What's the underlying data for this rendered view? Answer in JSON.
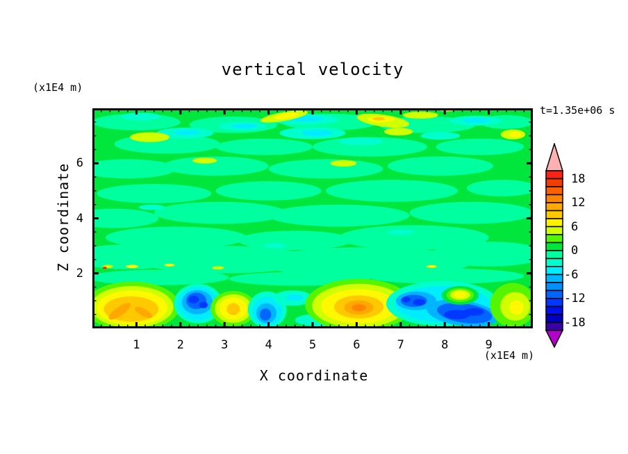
{
  "title": "vertical velocity",
  "timestamp": "t=1.35e+06 s",
  "y_axis": {
    "label": "Z coordinate",
    "units": "(x1E4 m)",
    "tick_values": [
      2,
      4,
      6
    ]
  },
  "x_axis": {
    "label": "X coordinate",
    "units": "(x1E4 m)",
    "tick_values": [
      1,
      2,
      3,
      4,
      5,
      6,
      7,
      8,
      9
    ]
  },
  "colorbar": {
    "tick_values": [
      18,
      12,
      6,
      0,
      -6,
      -12,
      -18
    ],
    "levels_min": -20,
    "levels_max": 20,
    "levels_step": 2,
    "segment_colors_top_to_bottom": [
      "#FB2318",
      "#F23E00",
      "#FF6000",
      "#FF8500",
      "#FFA800",
      "#FFC900",
      "#FFF100",
      "#CFFF00",
      "#55F400",
      "#00E63C",
      "#00FF9E",
      "#00FFCC",
      "#00ECFF",
      "#00B4FF",
      "#0090FF",
      "#0066FF",
      "#0038FF",
      "#0010E8",
      "#0000BE",
      "#3800A8"
    ],
    "over_color": "#FFB0B0",
    "under_color": "#B400C8"
  },
  "chart_data": {
    "type": "heatmap",
    "subtype": "filled-contour",
    "title": "vertical velocity",
    "xlabel": "X coordinate (x1E4 m)",
    "ylabel": "Z coordinate (x1E4 m)",
    "time_annotation": "t=1.35e+06 s",
    "x_range": [
      0,
      10
    ],
    "z_range": [
      0,
      8
    ],
    "x_major_ticks": [
      1,
      2,
      3,
      4,
      5,
      6,
      7,
      8,
      9
    ],
    "x_minor_step": 0.2,
    "z_major_ticks": [
      2,
      4,
      6
    ],
    "z_minor_step": 0.5,
    "contour_levels": {
      "min": -20,
      "max": 20,
      "step": 2
    },
    "legend_position": "right-colorbar",
    "grid": false,
    "palette": {
      "green": "#00E63C",
      "spring": "#00FF9E",
      "turq": "#00FFCC",
      "cyan": "#00ECFF",
      "sky": "#00B4FF",
      "dodger": "#0066FF",
      "blue": "#0038FF",
      "lime": "#55F400",
      "chart": "#CFFF00",
      "yellow": "#FFF800",
      "gold": "#FFC900",
      "orange": "#FFA800",
      "dorange": "#FF8500",
      "red": "#FB2318"
    },
    "base_color": "green",
    "features_note": "ellipse patches [colorKey, x, z, rx, rz, rotDeg] in data coords; drawn in order",
    "features": [
      [
        "spring",
        0.8,
        2.6,
        1.3,
        0.45,
        0
      ],
      [
        "spring",
        3.0,
        2.5,
        2.0,
        0.5,
        0
      ],
      [
        "spring",
        6.2,
        2.4,
        2.4,
        0.55,
        0
      ],
      [
        "spring",
        9.0,
        2.7,
        1.3,
        0.45,
        0
      ],
      [
        "spring",
        1.9,
        3.3,
        1.6,
        0.4,
        0
      ],
      [
        "spring",
        4.6,
        3.2,
        1.3,
        0.35,
        0
      ],
      [
        "spring",
        7.3,
        3.3,
        1.7,
        0.45,
        0
      ],
      [
        "spring",
        0.5,
        4.0,
        1.0,
        0.35,
        0
      ],
      [
        "spring",
        2.9,
        4.2,
        1.5,
        0.4,
        0
      ],
      [
        "spring",
        5.6,
        4.1,
        1.6,
        0.4,
        0
      ],
      [
        "spring",
        8.6,
        4.2,
        1.4,
        0.4,
        0
      ],
      [
        "spring",
        1.4,
        4.9,
        1.3,
        0.35,
        0
      ],
      [
        "spring",
        4.0,
        5.0,
        1.2,
        0.35,
        0
      ],
      [
        "spring",
        6.8,
        5.0,
        1.5,
        0.4,
        0
      ],
      [
        "spring",
        9.3,
        5.1,
        0.8,
        0.3,
        0
      ],
      [
        "spring",
        0.8,
        5.8,
        1.1,
        0.35,
        0
      ],
      [
        "spring",
        2.8,
        5.9,
        1.2,
        0.35,
        0
      ],
      [
        "spring",
        5.3,
        5.8,
        1.3,
        0.35,
        0
      ],
      [
        "spring",
        7.9,
        5.9,
        1.2,
        0.35,
        0
      ],
      [
        "spring",
        1.7,
        6.7,
        1.2,
        0.35,
        0
      ],
      [
        "spring",
        3.9,
        6.6,
        1.1,
        0.3,
        0
      ],
      [
        "spring",
        6.3,
        6.6,
        1.3,
        0.35,
        0
      ],
      [
        "spring",
        8.8,
        6.6,
        1.0,
        0.3,
        0
      ],
      [
        "spring",
        1.0,
        7.5,
        1.0,
        0.3,
        0
      ],
      [
        "spring",
        3.2,
        7.4,
        1.0,
        0.3,
        0
      ],
      [
        "spring",
        5.4,
        7.5,
        1.1,
        0.3,
        0
      ],
      [
        "spring",
        7.6,
        7.4,
        1.1,
        0.3,
        0
      ],
      [
        "spring",
        9.4,
        7.5,
        0.6,
        0.25,
        0
      ],
      [
        "spring",
        1.5,
        1.85,
        1.6,
        0.28,
        0
      ],
      [
        "spring",
        4.7,
        1.8,
        1.6,
        0.25,
        0
      ],
      [
        "spring",
        8.0,
        1.9,
        1.8,
        0.28,
        0
      ],
      [
        "turq",
        2.1,
        7.1,
        0.65,
        0.2,
        0
      ],
      [
        "turq",
        3.4,
        7.35,
        0.55,
        0.16,
        0
      ],
      [
        "turq",
        5.0,
        7.1,
        0.75,
        0.22,
        0
      ],
      [
        "turq",
        4.8,
        7.6,
        0.8,
        0.2,
        0
      ],
      [
        "turq",
        6.1,
        6.8,
        0.5,
        0.15,
        0
      ],
      [
        "turq",
        7.9,
        7.0,
        0.45,
        0.14,
        0
      ],
      [
        "turq",
        8.7,
        7.55,
        0.6,
        0.18,
        0
      ],
      [
        "turq",
        1.1,
        7.7,
        0.45,
        0.14,
        0
      ],
      [
        "turq",
        1.35,
        4.4,
        0.3,
        0.1,
        0
      ],
      [
        "turq",
        7.0,
        3.5,
        0.3,
        0.1,
        0
      ],
      [
        "turq",
        4.15,
        3.0,
        0.25,
        0.09,
        0
      ],
      [
        "cyan",
        3.45,
        7.35,
        0.28,
        0.09,
        0
      ],
      [
        "cyan",
        5.1,
        7.1,
        0.35,
        0.12,
        0
      ],
      [
        "cyan",
        4.85,
        7.62,
        0.4,
        0.11,
        0
      ],
      [
        "cyan",
        8.72,
        7.55,
        0.3,
        0.09,
        0
      ],
      [
        "cyan",
        2.15,
        7.12,
        0.28,
        0.09,
        0
      ],
      [
        "chart",
        4.35,
        7.7,
        0.55,
        0.16,
        -10
      ],
      [
        "chart",
        6.6,
        7.55,
        0.6,
        0.22,
        8
      ],
      [
        "chart",
        6.95,
        7.15,
        0.33,
        0.14,
        0
      ],
      [
        "chart",
        1.3,
        6.95,
        0.45,
        0.18,
        0
      ],
      [
        "chart",
        7.45,
        7.75,
        0.4,
        0.13,
        0
      ],
      [
        "chart",
        9.55,
        7.05,
        0.28,
        0.18,
        0
      ],
      [
        "chart",
        2.55,
        6.1,
        0.28,
        0.11,
        0
      ],
      [
        "chart",
        5.7,
        6.0,
        0.3,
        0.12,
        0
      ],
      [
        "yellow",
        4.4,
        7.72,
        0.28,
        0.09,
        -10
      ],
      [
        "yellow",
        6.55,
        7.6,
        0.3,
        0.11,
        0
      ],
      [
        "yellow",
        9.6,
        7.05,
        0.14,
        0.1,
        0
      ],
      [
        "gold",
        6.5,
        7.62,
        0.14,
        0.06,
        0
      ],
      [
        "gold",
        8.05,
        7.95,
        0.18,
        0.07,
        0
      ],
      [
        "orange",
        6.45,
        7.98,
        0.12,
        0.05,
        0
      ],
      [
        "chart",
        0.35,
        2.25,
        0.12,
        0.06,
        0
      ],
      [
        "red",
        0.28,
        2.2,
        0.05,
        0.04,
        0
      ],
      [
        "yellow",
        0.9,
        2.25,
        0.14,
        0.06,
        0
      ],
      [
        "yellow",
        1.75,
        2.3,
        0.12,
        0.05,
        0
      ],
      [
        "chart",
        2.85,
        2.2,
        0.14,
        0.06,
        0
      ],
      [
        "yellow",
        7.7,
        2.25,
        0.12,
        0.05,
        0
      ],
      [
        "lime",
        0.9,
        0.8,
        1.08,
        0.9,
        0
      ],
      [
        "chart",
        0.9,
        0.78,
        0.94,
        0.76,
        0
      ],
      [
        "yellow",
        0.9,
        0.75,
        0.8,
        0.62,
        0
      ],
      [
        "gold",
        0.88,
        0.7,
        0.62,
        0.46,
        0
      ],
      [
        "orange",
        0.62,
        0.62,
        0.3,
        0.16,
        -35
      ],
      [
        "orange",
        1.16,
        0.58,
        0.22,
        0.13,
        28
      ],
      [
        "turq",
        2.4,
        0.9,
        0.55,
        0.72,
        0
      ],
      [
        "cyan",
        2.4,
        0.9,
        0.46,
        0.6,
        0
      ],
      [
        "sky",
        2.38,
        0.95,
        0.35,
        0.44,
        0
      ],
      [
        "dodger",
        2.36,
        1.0,
        0.23,
        0.3,
        0
      ],
      [
        "blue",
        2.3,
        1.05,
        0.12,
        0.14,
        0
      ],
      [
        "blue",
        2.52,
        0.85,
        0.1,
        0.12,
        0
      ],
      [
        "lime",
        3.2,
        0.72,
        0.52,
        0.64,
        0
      ],
      [
        "chart",
        3.2,
        0.72,
        0.42,
        0.52,
        0
      ],
      [
        "yellow",
        3.2,
        0.72,
        0.31,
        0.4,
        0
      ],
      [
        "gold",
        3.2,
        0.7,
        0.15,
        0.22,
        0
      ],
      [
        "turq",
        3.97,
        0.68,
        0.44,
        0.66,
        6
      ],
      [
        "cyan",
        3.97,
        0.62,
        0.34,
        0.52,
        6
      ],
      [
        "sky",
        3.95,
        0.55,
        0.23,
        0.36,
        6
      ],
      [
        "dodger",
        3.93,
        0.5,
        0.13,
        0.22,
        6
      ],
      [
        "turq",
        4.55,
        1.1,
        0.45,
        0.28,
        0
      ],
      [
        "cyan",
        4.6,
        1.12,
        0.2,
        0.12,
        0
      ],
      [
        "turq",
        5.1,
        0.3,
        0.5,
        0.22,
        0
      ],
      [
        "cyan",
        5.35,
        0.3,
        0.2,
        0.1,
        0
      ],
      [
        "lime",
        6.05,
        0.85,
        1.22,
        0.95,
        0
      ],
      [
        "chart",
        6.05,
        0.82,
        1.06,
        0.8,
        0
      ],
      [
        "yellow",
        6.05,
        0.8,
        0.86,
        0.62,
        0
      ],
      [
        "gold",
        6.05,
        0.78,
        0.56,
        0.42,
        0
      ],
      [
        "orange",
        6.05,
        0.76,
        0.33,
        0.26,
        0
      ],
      [
        "dorange",
        6.05,
        0.75,
        0.16,
        0.13,
        0
      ],
      [
        "turq",
        7.95,
        0.9,
        1.28,
        0.82,
        0
      ],
      [
        "cyan",
        7.95,
        0.88,
        1.08,
        0.66,
        0
      ],
      [
        "sky",
        7.35,
        1.0,
        0.46,
        0.34,
        0
      ],
      [
        "dodger",
        7.3,
        1.0,
        0.3,
        0.22,
        0
      ],
      [
        "blue",
        7.42,
        0.95,
        0.14,
        0.12,
        0
      ],
      [
        "blue",
        7.12,
        1.05,
        0.1,
        0.1,
        0
      ],
      [
        "sky",
        8.4,
        0.55,
        0.82,
        0.46,
        8
      ],
      [
        "dodger",
        8.45,
        0.55,
        0.63,
        0.35,
        8
      ],
      [
        "blue",
        8.28,
        0.5,
        0.3,
        0.17,
        0
      ],
      [
        "blue",
        8.66,
        0.6,
        0.23,
        0.14,
        0
      ],
      [
        "green",
        8.35,
        1.2,
        0.42,
        0.34,
        0
      ],
      [
        "lime",
        8.35,
        1.21,
        0.31,
        0.25,
        0
      ],
      [
        "chart",
        8.35,
        1.22,
        0.23,
        0.18,
        0
      ],
      [
        "yellow",
        8.35,
        1.22,
        0.14,
        0.11,
        0
      ],
      [
        "lime",
        9.55,
        0.85,
        0.52,
        0.8,
        0
      ],
      [
        "chart",
        9.6,
        0.8,
        0.34,
        0.52,
        0
      ],
      [
        "yellow",
        9.63,
        0.76,
        0.16,
        0.26,
        0
      ]
    ]
  }
}
